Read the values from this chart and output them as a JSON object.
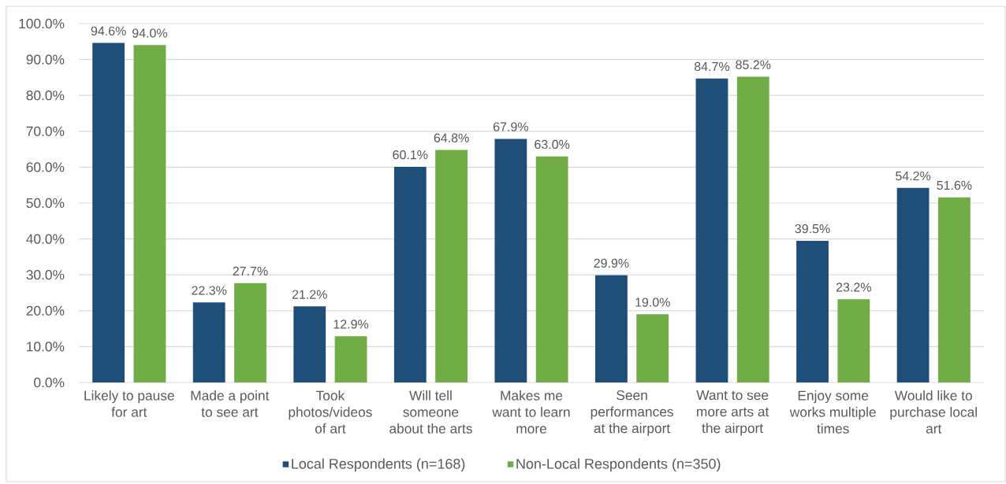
{
  "chart_data": {
    "type": "bar",
    "categories": [
      "Likely to pause for art",
      "Made a point to see art",
      "Took photos/videos of art",
      "Will tell someone about the arts",
      "Makes me want to learn more",
      "Seen performances at the airport",
      "Want to see more arts at the airport",
      "Enjoy some works multiple times",
      "Would like to purchase local art"
    ],
    "series": [
      {
        "name": "Local Respondents (n=168)",
        "color": "#1f4e79",
        "values": [
          94.6,
          22.3,
          21.2,
          60.1,
          67.9,
          29.9,
          84.7,
          39.5,
          54.2
        ],
        "value_labels": [
          "94.6%",
          "22.3%",
          "21.2%",
          "60.1%",
          "67.9%",
          "29.9%",
          "84.7%",
          "39.5%",
          "54.2%"
        ]
      },
      {
        "name": "Non-Local Respondents (n=350)",
        "color": "#70ad47",
        "values": [
          94.0,
          27.7,
          12.9,
          64.8,
          63.0,
          19.0,
          85.2,
          23.2,
          51.6
        ],
        "value_labels": [
          "94.0%",
          "27.7%",
          "12.9%",
          "64.8%",
          "63.0%",
          "19.0%",
          "85.2%",
          "23.2%",
          "51.6%"
        ]
      }
    ],
    "ylim": [
      0,
      100
    ],
    "yticks": [
      {
        "value": 0,
        "label": "0.0%"
      },
      {
        "value": 10,
        "label": "10.0%"
      },
      {
        "value": 20,
        "label": "20.0%"
      },
      {
        "value": 30,
        "label": "30.0%"
      },
      {
        "value": 40,
        "label": "40.0%"
      },
      {
        "value": 50,
        "label": "50.0%"
      },
      {
        "value": 60,
        "label": "60.0%"
      },
      {
        "value": 70,
        "label": "70.0%"
      },
      {
        "value": 80,
        "label": "80.0%"
      },
      {
        "value": 90,
        "label": "90.0%"
      },
      {
        "value": 100,
        "label": "100.0%"
      }
    ],
    "grid": "y",
    "legend": "bottom"
  }
}
